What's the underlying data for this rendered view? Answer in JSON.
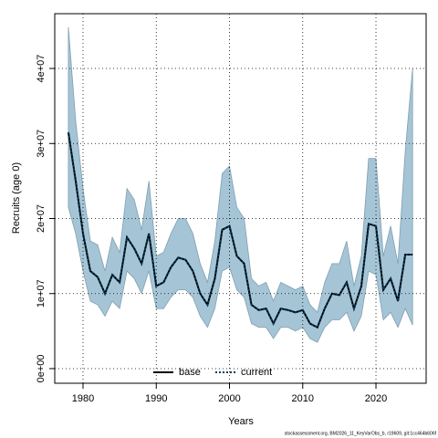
{
  "chart_data": {
    "type": "line",
    "xlabel": "Years",
    "ylabel": "Recruits (age 0)",
    "footer": "stockassessment.org, BM2026_11_KeyVarObs_b, r19609, git:1cc464b606f",
    "x": [
      1978,
      1979,
      1980,
      1981,
      1982,
      1983,
      1984,
      1985,
      1986,
      1987,
      1988,
      1989,
      1990,
      1991,
      1992,
      1993,
      1994,
      1995,
      1996,
      1997,
      1998,
      1999,
      2000,
      2001,
      2002,
      2003,
      2004,
      2005,
      2006,
      2007,
      2008,
      2009,
      2010,
      2011,
      2012,
      2013,
      2014,
      2015,
      2016,
      2017,
      2018,
      2019,
      2020,
      2021,
      2022,
      2023,
      2024,
      2025
    ],
    "series": [
      {
        "name": "base",
        "color": "#000000",
        "dash": "solid",
        "values": [
          31500000.0,
          25000000.0,
          18000000.0,
          13000000.0,
          12200000.0,
          10000000.0,
          12500000.0,
          11500000.0,
          17500000.0,
          16000000.0,
          14000000.0,
          18000000.0,
          11000000.0,
          11500000.0,
          13500000.0,
          14800000.0,
          14500000.0,
          13000000.0,
          10000000.0,
          8500000.0,
          12000000.0,
          18500000.0,
          19000000.0,
          15000000.0,
          14000000.0,
          8500000.0,
          7800000.0,
          8000000.0,
          6000000.0,
          8000000.0,
          7800000.0,
          7500000.0,
          7800000.0,
          6000000.0,
          5500000.0,
          8000000.0,
          10000000.0,
          9800000.0,
          11500000.0,
          8000000.0,
          11000000.0,
          19300000.0,
          19000000.0,
          10500000.0,
          12000000.0,
          9000000.0,
          15200000.0,
          15200000.0
        ]
      },
      {
        "name": "current",
        "color": "#0b3b5c",
        "dash": "dotted",
        "values": [
          31500000.0,
          25000000.0,
          18000000.0,
          13000000.0,
          12200000.0,
          10000000.0,
          12500000.0,
          11500000.0,
          17500000.0,
          16000000.0,
          14000000.0,
          18000000.0,
          11000000.0,
          11500000.0,
          13500000.0,
          14800000.0,
          14500000.0,
          13000000.0,
          10000000.0,
          8500000.0,
          12000000.0,
          18500000.0,
          19000000.0,
          15000000.0,
          14000000.0,
          8500000.0,
          7800000.0,
          8000000.0,
          6000000.0,
          8000000.0,
          7800000.0,
          7500000.0,
          7800000.0,
          6000000.0,
          5500000.0,
          8000000.0,
          10000000.0,
          9800000.0,
          11500000.0,
          8000000.0,
          11000000.0,
          19300000.0,
          19000000.0,
          10500000.0,
          12000000.0,
          9000000.0,
          15200000.0,
          15200000.0
        ]
      }
    ],
    "band": {
      "color": "#a5c5d6",
      "upper": [
        45500000.0,
        33000000.0,
        24000000.0,
        17000000.0,
        16500000.0,
        13000000.0,
        17500000.0,
        15500000.0,
        24000000.0,
        22500000.0,
        18500000.0,
        25000000.0,
        15000000.0,
        15500000.0,
        18000000.0,
        20000000.0,
        20000000.0,
        18000000.0,
        14000000.0,
        11500000.0,
        17000000.0,
        26000000.0,
        27000000.0,
        21500000.0,
        20000000.0,
        12000000.0,
        11000000.0,
        11500000.0,
        9000000.0,
        11500000.0,
        11000000.0,
        10500000.0,
        11000000.0,
        8500000.0,
        7500000.0,
        11500000.0,
        14000000.0,
        14000000.0,
        17000000.0,
        11000000.0,
        15000000.0,
        28000000.0,
        28000000.0,
        15000000.0,
        19000000.0,
        14000000.0,
        29000000.0,
        40000000.0
      ],
      "lower": [
        21500000.0,
        18000000.0,
        13000000.0,
        9000000.0,
        8500000.0,
        7000000.0,
        9000000.0,
        8000000.0,
        13000000.0,
        12000000.0,
        10000000.0,
        13000000.0,
        8000000.0,
        8000000.0,
        9500000.0,
        10500000.0,
        10500000.0,
        9500000.0,
        7000000.0,
        5500000.0,
        8000000.0,
        13000000.0,
        13500000.0,
        10500000.0,
        9500000.0,
        6000000.0,
        5500000.0,
        5500000.0,
        4000000.0,
        5500000.0,
        5500000.0,
        5000000.0,
        5500000.0,
        4000000.0,
        3500000.0,
        5500000.0,
        6500000.0,
        6500000.0,
        7500000.0,
        5000000.0,
        7000000.0,
        13000000.0,
        12500000.0,
        6500000.0,
        7500000.0,
        5500000.0,
        8000000.0,
        5800000.0
      ]
    },
    "xlim": [
      1976.14,
      2026.85
    ],
    "ylim": [
      -1950000.0,
      47300000.0
    ],
    "xticks": [
      1980,
      1990,
      2000,
      2010,
      2020
    ],
    "yticks": [
      {
        "value": 0,
        "label": "0e+00"
      },
      {
        "value": 10000000,
        "label": "1e+07"
      },
      {
        "value": 20000000,
        "label": "2e+07"
      },
      {
        "value": 30000000,
        "label": "3e+07"
      },
      {
        "value": 40000000,
        "label": "4e+07"
      }
    ],
    "grid": true,
    "legend": "bottom"
  }
}
